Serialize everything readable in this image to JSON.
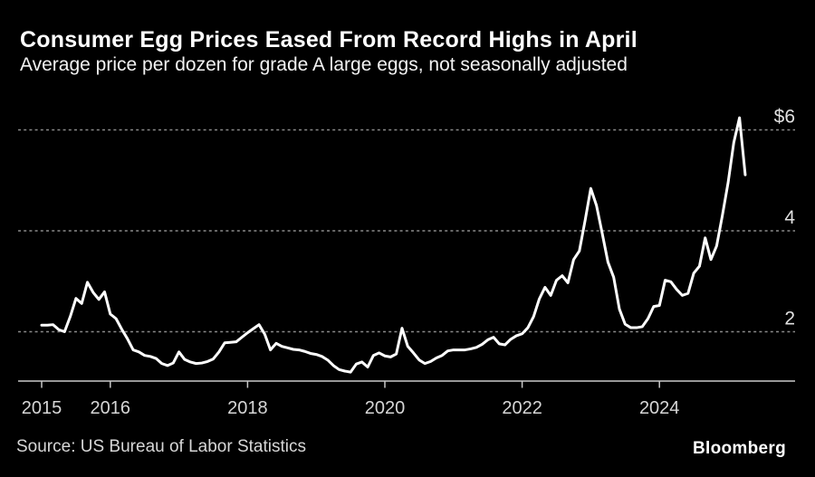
{
  "header": {
    "title": "Consumer Egg Prices Eased From Record Highs in April",
    "subtitle": "Average price per dozen for grade A large eggs, not seasonally adjusted"
  },
  "footer": {
    "source": "Source: US Bureau of Labor Statistics",
    "brand": "Bloomberg"
  },
  "colors": {
    "background": "#000000",
    "line": "#ffffff",
    "grid": "#8a8a8a",
    "axis": "#c9c9c9",
    "x_tick_label": "#d6d6d6",
    "y_tick_label": "#e0e0e0",
    "title": "#ffffff"
  },
  "chart_data": {
    "type": "line",
    "title": "Consumer Egg Prices Eased From Record Highs in April",
    "subtitle": "Average price per dozen for grade A large eggs, not seasonally adjusted",
    "unit": "$ per dozen",
    "grid": "horizontal-dashed",
    "legend": "none",
    "x_axis": {
      "start": "2015-01",
      "end": "2025-04",
      "tick_years": [
        2015,
        2016,
        2018,
        2020,
        2022,
        2024
      ],
      "tick_labels": [
        "2015",
        "2016",
        "2018",
        "2020",
        "2022",
        "2024"
      ]
    },
    "y_axis": {
      "side": "right",
      "ticks": [
        2,
        4,
        6
      ],
      "tick_labels": [
        "2",
        "4",
        "$6"
      ],
      "ylim": [
        1.02,
        6.45
      ]
    },
    "series": [
      {
        "start": "2015-01",
        "end": "2025-04",
        "frequency": "monthly",
        "values": [
          2.13,
          2.13,
          2.14,
          2.04,
          2.0,
          2.3,
          2.66,
          2.56,
          2.98,
          2.78,
          2.64,
          2.79,
          2.35,
          2.26,
          2.05,
          1.86,
          1.64,
          1.6,
          1.53,
          1.51,
          1.47,
          1.37,
          1.33,
          1.38,
          1.6,
          1.45,
          1.4,
          1.37,
          1.38,
          1.41,
          1.46,
          1.6,
          1.78,
          1.79,
          1.8,
          1.89,
          1.98,
          2.06,
          2.14,
          1.95,
          1.64,
          1.77,
          1.71,
          1.68,
          1.65,
          1.64,
          1.61,
          1.57,
          1.55,
          1.51,
          1.44,
          1.33,
          1.25,
          1.22,
          1.2,
          1.36,
          1.4,
          1.3,
          1.53,
          1.58,
          1.52,
          1.5,
          1.56,
          2.07,
          1.71,
          1.58,
          1.44,
          1.37,
          1.41,
          1.48,
          1.53,
          1.62,
          1.64,
          1.64,
          1.64,
          1.66,
          1.69,
          1.75,
          1.84,
          1.89,
          1.76,
          1.74,
          1.85,
          1.92,
          1.96,
          2.08,
          2.3,
          2.65,
          2.88,
          2.72,
          3.02,
          3.11,
          2.97,
          3.43,
          3.6,
          4.2,
          4.84,
          4.5,
          3.95,
          3.38,
          3.08,
          2.45,
          2.15,
          2.08,
          2.08,
          2.1,
          2.26,
          2.5,
          2.52,
          3.02,
          2.99,
          2.84,
          2.72,
          2.76,
          3.16,
          3.3,
          3.86,
          3.43,
          3.7,
          4.3,
          4.95,
          5.75,
          6.24,
          5.11
        ]
      }
    ]
  }
}
